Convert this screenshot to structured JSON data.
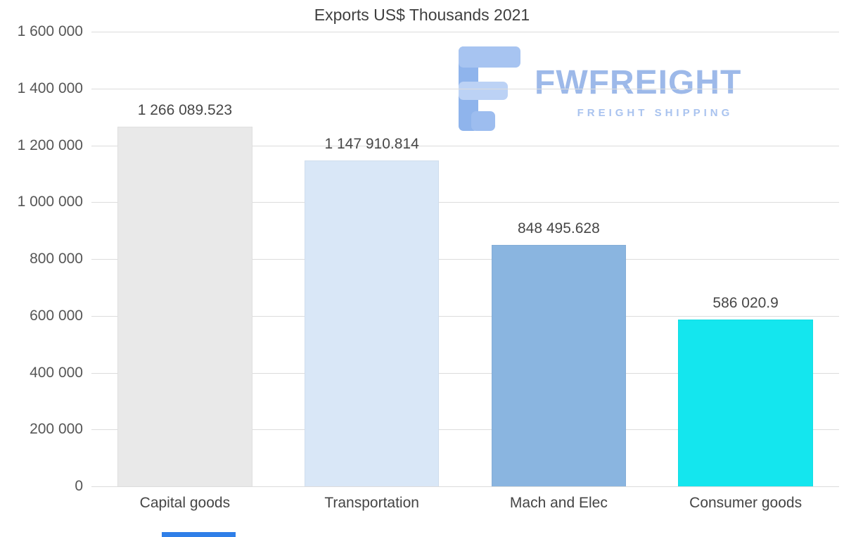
{
  "watermark": {
    "brand": "FWFREIGHT",
    "tagline": "FREIGHT SHIPPING",
    "color": "#9db9e9"
  },
  "decorations": {
    "bottom_strip_color": "#2f7fe8"
  },
  "chart_data": {
    "type": "bar",
    "title": "Exports US$ Thousands 2021",
    "categories": [
      "Capital goods",
      "Transportation",
      "Mach and Elec",
      "Consumer goods"
    ],
    "values": [
      1266089.523,
      1147910.814,
      848495.628,
      586020.9
    ],
    "value_labels": [
      "1 266 089.523",
      "1 147 910.814",
      "848 495.628",
      "586 020.9"
    ],
    "bar_colors": [
      "#e9e9e9",
      "#d9e7f7",
      "#8ab5e0",
      "#14e6ee"
    ],
    "xlabel": "",
    "ylabel": "",
    "ylim": [
      0,
      1600000
    ],
    "grid": true,
    "legend": false,
    "yticks": [
      {
        "value": 0,
        "label": "0"
      },
      {
        "value": 200000,
        "label": "200 000"
      },
      {
        "value": 400000,
        "label": "400 000"
      },
      {
        "value": 600000,
        "label": "600 000"
      },
      {
        "value": 800000,
        "label": "800 000"
      },
      {
        "value": 1000000,
        "label": "1 000 000"
      },
      {
        "value": 1200000,
        "label": "1 200 000"
      },
      {
        "value": 1400000,
        "label": "1 400 000"
      },
      {
        "value": 1600000,
        "label": "1 600 000"
      }
    ]
  }
}
